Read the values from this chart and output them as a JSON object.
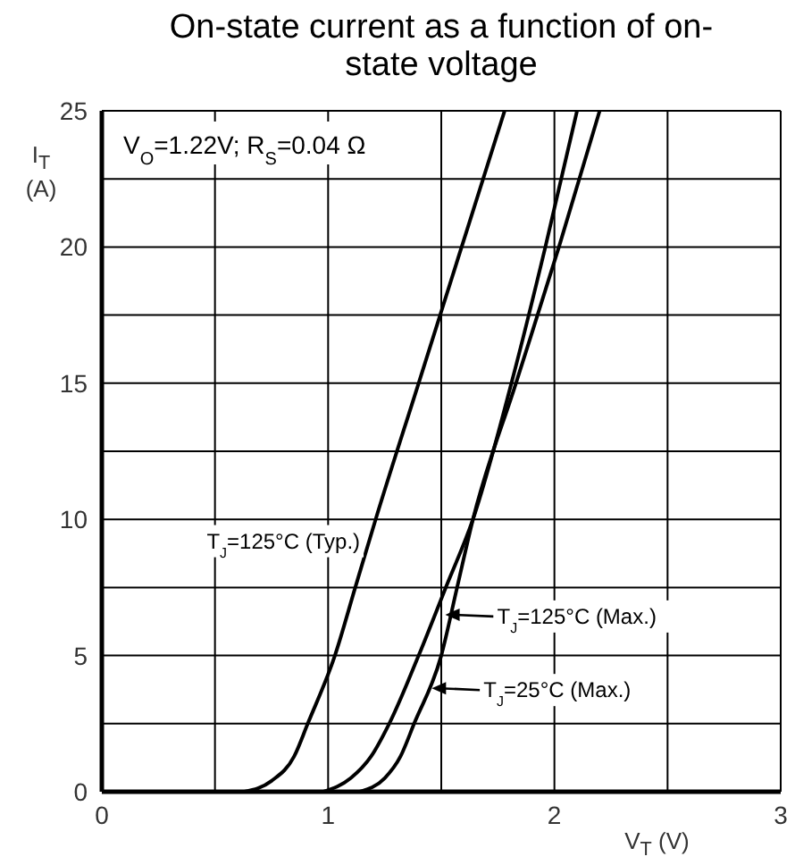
{
  "chart_data": {
    "type": "line",
    "title": "On-state current as a function of on-state voltage",
    "xlabel": "V$_{T}$ (V)",
    "ylabel": "I$_{T}$ (A)",
    "xlim": [
      0,
      3
    ],
    "xticks": [
      0,
      {
        "value": 0.5,
        "label": null
      },
      1,
      {
        "value": 1.5,
        "label": null
      },
      2,
      {
        "value": 2.5,
        "label": null
      },
      3
    ],
    "ylim": [
      0,
      25
    ],
    "yticks": [
      0,
      {
        "value": 2.5,
        "label": null
      },
      5,
      {
        "value": 7.5,
        "label": null
      },
      10,
      {
        "value": 12.5,
        "label": null
      },
      15,
      {
        "value": 17.5,
        "label": null
      },
      20,
      {
        "value": 22.5,
        "label": null
      },
      25
    ],
    "grid": true,
    "marker": "none",
    "line_style": "solid",
    "series": [
      {
        "color": "#000000",
        "x": [
          0.63,
          0.75,
          0.85,
          0.91,
          1.03,
          1.12,
          1.21,
          1.4,
          1.59,
          1.78
        ],
        "values": [
          0,
          0.4,
          1.3,
          2.5,
          5,
          7.5,
          10,
          15,
          20,
          25
        ]
      },
      {
        "color": "#000000",
        "x": [
          0.98,
          1.1,
          1.19,
          1.27,
          1.4,
          1.52,
          1.64,
          1.81,
          1.96,
          2.1
        ],
        "values": [
          0,
          0.5,
          1.3,
          2.5,
          5,
          7.5,
          10,
          15,
          20,
          25
        ]
      },
      {
        "color": "#000000",
        "x": [
          1.14,
          1.25,
          1.32,
          1.38,
          1.5,
          1.57,
          1.64,
          1.83,
          2.02,
          2.2
        ],
        "values": [
          0,
          0.5,
          1.3,
          2.5,
          5,
          7.5,
          10,
          15,
          20,
          25
        ]
      }
    ],
    "annotations": [
      "V$_{O}$=1.22V; R$_{S}$=0.04 Ω",
      {
        "text": "T$_{J}$=125°C (Typ.)",
        "x": 1.22,
        "y": 9.2
      },
      {
        "text": "T$_{J}$=125°C (Max.)",
        "x": 1.51,
        "y": 6.5
      },
      {
        "text": "T$_{J}$=25°C (Max.)",
        "x": 1.45,
        "y": 3.8
      }
    ]
  }
}
